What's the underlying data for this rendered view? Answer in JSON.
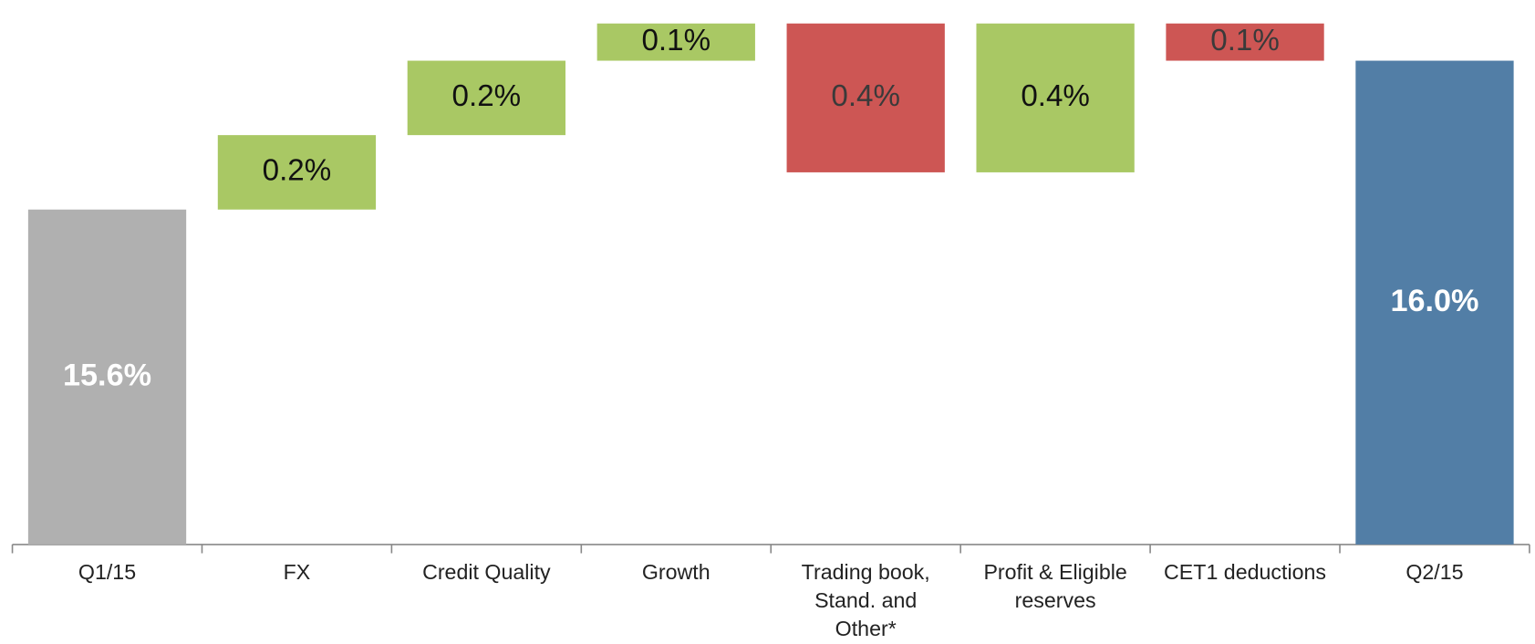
{
  "chart_data": {
    "type": "waterfall",
    "categories": [
      "Q1/15",
      "FX",
      "Credit Quality",
      "Growth",
      "Trading book, Stand. and Other*",
      "Profit & Eligible reserves",
      "CET1 deductions",
      "Q2/15"
    ],
    "values": [
      15.6,
      0.2,
      0.2,
      0.1,
      -0.4,
      0.4,
      -0.1,
      16.0
    ],
    "value_labels": [
      "15.6%",
      "0.2%",
      "0.2%",
      "0.1%",
      "0.4%",
      "0.4%",
      "0.1%",
      "16.0%"
    ],
    "colors": [
      "#b0b0b0",
      "#a9c864",
      "#a9c864",
      "#a9c864",
      "#cd5654",
      "#a9c864",
      "#cd5654",
      "#527ea6"
    ],
    "ylim": [
      14.7,
      16.15
    ]
  }
}
